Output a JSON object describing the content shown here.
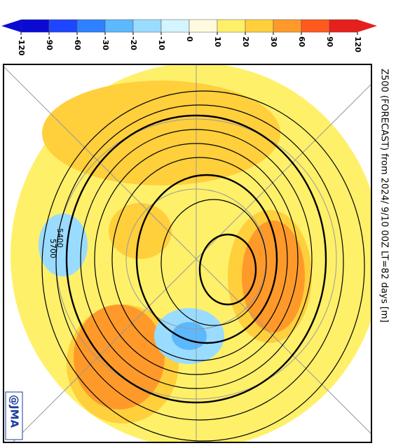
{
  "colorbar": {
    "ticks": [
      -120,
      -90,
      -60,
      -30,
      -20,
      -10,
      0,
      10,
      20,
      30,
      60,
      90,
      120
    ],
    "colors": [
      "#0a0ad2",
      "#1e46ff",
      "#2e82ff",
      "#5cb8ff",
      "#9adcff",
      "#d4f4ff",
      "#fffade",
      "#fff06a",
      "#ffcf3c",
      "#ff9a2a",
      "#ff5a1e",
      "#e6201c"
    ]
  },
  "title": "Z500 (FORECAST)  from  2024/ 9/10 00Z LT=82 days  [m]",
  "contour_labels": [
    "5700",
    "5400"
  ],
  "credit": "@JMA"
}
